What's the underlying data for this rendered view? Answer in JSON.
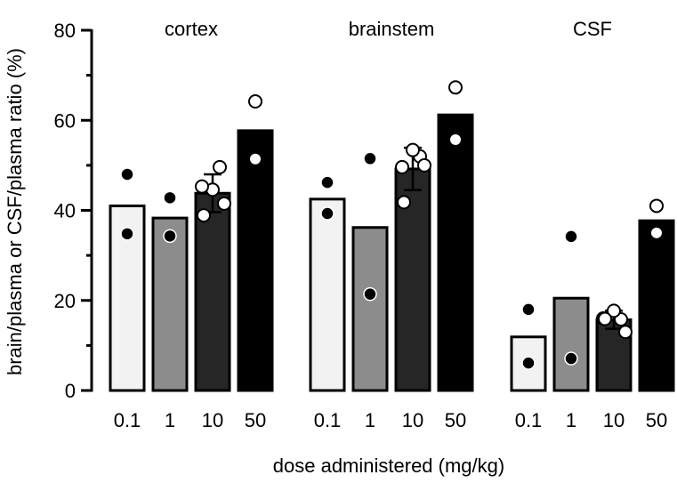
{
  "chart_data": {
    "type": "bar",
    "title": "",
    "xlabel": "dose administered (mg/kg)",
    "ylabel": "brain/plasma or CSF/plasma ratio (%)",
    "ylim": [
      0,
      80
    ],
    "y_major_ticks": [
      "0",
      "20",
      "40",
      "60",
      "80"
    ],
    "y_minor_step": 10,
    "dose_labels": [
      "0.1",
      "1",
      "10",
      "50"
    ],
    "dose_colors": [
      "#f2f2f2",
      "#8c8c8c",
      "#262626",
      "#000000"
    ],
    "groups": [
      {
        "name": "cortex",
        "bars": [
          {
            "dose": "0.1",
            "value": 41.0,
            "points": [
              {
                "v": 48.0,
                "f": "k"
              },
              {
                "v": 34.8,
                "f": "k"
              }
            ]
          },
          {
            "dose": "1",
            "value": 38.3,
            "points": [
              {
                "v": 42.8,
                "f": "k"
              },
              {
                "v": 34.3,
                "f": "k"
              }
            ]
          },
          {
            "dose": "10",
            "value": 43.8,
            "err": 4.2,
            "points": [
              {
                "v": 49.6,
                "f": "w"
              },
              {
                "v": 44.6,
                "f": "w"
              },
              {
                "v": 45.3,
                "f": "w"
              },
              {
                "v": 41.5,
                "f": "w"
              },
              {
                "v": 38.9,
                "f": "w"
              }
            ]
          },
          {
            "dose": "50",
            "value": 57.7,
            "points": [
              {
                "v": 64.2,
                "f": "w"
              },
              {
                "v": 51.4,
                "f": "w"
              }
            ]
          }
        ]
      },
      {
        "name": "brainstem",
        "bars": [
          {
            "dose": "0.1",
            "value": 42.5,
            "points": [
              {
                "v": 46.2,
                "f": "k"
              },
              {
                "v": 39.3,
                "f": "k"
              }
            ]
          },
          {
            "dose": "1",
            "value": 36.2,
            "points": [
              {
                "v": 51.5,
                "f": "k"
              },
              {
                "v": 21.4,
                "f": "k"
              }
            ]
          },
          {
            "dose": "10",
            "value": 49.2,
            "err": 4.7,
            "points": [
              {
                "v": 52.0,
                "f": "w"
              },
              {
                "v": 53.4,
                "f": "w"
              },
              {
                "v": 49.6,
                "f": "w"
              },
              {
                "v": 50.0,
                "f": "w"
              },
              {
                "v": 41.8,
                "f": "w"
              }
            ]
          },
          {
            "dose": "50",
            "value": 61.2,
            "points": [
              {
                "v": 67.3,
                "f": "w"
              },
              {
                "v": 55.7,
                "f": "w"
              }
            ]
          }
        ]
      },
      {
        "name": "CSF",
        "bars": [
          {
            "dose": "0.1",
            "value": 11.9,
            "points": [
              {
                "v": 18.0,
                "f": "k"
              },
              {
                "v": 6.1,
                "f": "k"
              }
            ]
          },
          {
            "dose": "1",
            "value": 20.5,
            "points": [
              {
                "v": 34.2,
                "f": "k"
              },
              {
                "v": 7.1,
                "f": "k"
              }
            ]
          },
          {
            "dose": "10",
            "value": 15.7,
            "err": 2.0,
            "points": [
              {
                "v": 15.8,
                "f": "w"
              },
              {
                "v": 17.7,
                "f": "w"
              },
              {
                "v": 16.0,
                "f": "w"
              },
              {
                "v": 13.0,
                "f": "w"
              },
              {
                "v": 15.9,
                "f": "w"
              }
            ]
          },
          {
            "dose": "50",
            "value": 37.7,
            "points": [
              {
                "v": 41.0,
                "f": "w"
              },
              {
                "v": 35.0,
                "f": "w"
              }
            ]
          }
        ]
      }
    ]
  }
}
